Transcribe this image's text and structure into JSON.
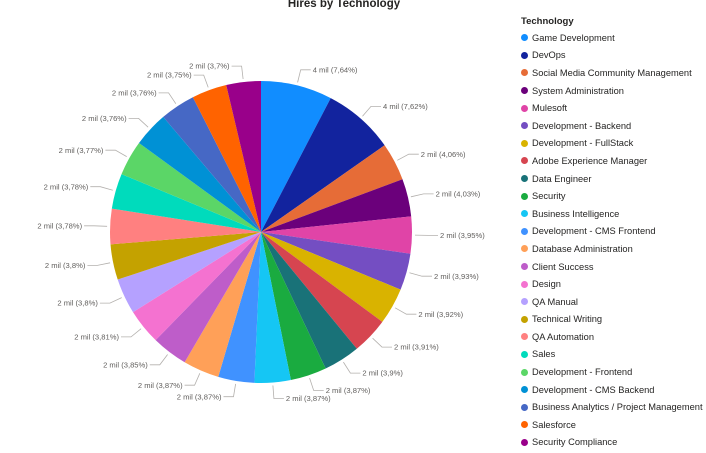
{
  "chart_data": {
    "type": "pie",
    "title": "Hires by Technology",
    "legend_title": "Technology",
    "legend_position": "right",
    "slices": [
      {
        "name": "Game Development",
        "label": "4 mil (7,64%)",
        "percent": 7.64,
        "color": "#118DFF"
      },
      {
        "name": "DevOps",
        "label": "4 mil (7,62%)",
        "percent": 7.62,
        "color": "#12239E"
      },
      {
        "name": "Social Media Community Management",
        "label": "2 mil (4,06%)",
        "percent": 4.06,
        "color": "#E66C37"
      },
      {
        "name": "System Administration",
        "label": "2 mil (4,03%)",
        "percent": 4.03,
        "color": "#6B007B"
      },
      {
        "name": "Mulesoft",
        "label": "2 mil (3,95%)",
        "percent": 3.95,
        "color": "#E044A7"
      },
      {
        "name": "Development - Backend",
        "label": "2 mil (3,93%)",
        "percent": 3.93,
        "color": "#744EC2"
      },
      {
        "name": "Development - FullStack",
        "label": "2 mil (3,92%)",
        "percent": 3.92,
        "color": "#D9B300"
      },
      {
        "name": "Adobe Experience Manager",
        "label": "2 mil (3,91%)",
        "percent": 3.91,
        "color": "#D64550"
      },
      {
        "name": "Data Engineer",
        "label": "2 mil (3,9%)",
        "percent": 3.9,
        "color": "#197278"
      },
      {
        "name": "Security",
        "label": "2 mil (3,87%)",
        "percent": 3.87,
        "color": "#1AAB40"
      },
      {
        "name": "Business Intelligence",
        "label": "2 mil (3,87%)",
        "percent": 3.87,
        "color": "#15C6F4"
      },
      {
        "name": "Development - CMS Frontend",
        "label": "2 mil (3,87%)",
        "percent": 3.87,
        "color": "#4092FF"
      },
      {
        "name": "Database Administration",
        "label": "2 mil (3,87%)",
        "percent": 3.87,
        "color": "#FFA058"
      },
      {
        "name": "Client Success",
        "label": "2 mil (3,85%)",
        "percent": 3.85,
        "color": "#BE5DC9"
      },
      {
        "name": "Design",
        "label": "2 mil (3,81%)",
        "percent": 3.81,
        "color": "#F472D0"
      },
      {
        "name": "QA Manual",
        "label": "2 mil (3,8%)",
        "percent": 3.8,
        "color": "#B5A1FF"
      },
      {
        "name": "Technical Writing",
        "label": "2 mil (3,8%)",
        "percent": 3.8,
        "color": "#C4A200"
      },
      {
        "name": "QA Automation",
        "label": "2 mil (3,78%)",
        "percent": 3.78,
        "color": "#FF8080"
      },
      {
        "name": "Sales",
        "label": "2 mil (3,78%)",
        "percent": 3.78,
        "color": "#00DBBC"
      },
      {
        "name": "Development - Frontend",
        "label": "2 mil (3,77%)",
        "percent": 3.77,
        "color": "#5BD667"
      },
      {
        "name": "Development - CMS Backend",
        "label": "2 mil (3,76%)",
        "percent": 3.76,
        "color": "#0091D5"
      },
      {
        "name": "Business Analytics / Project Management",
        "label": "2 mil (3,76%)",
        "percent": 3.76,
        "color": "#4668C5"
      },
      {
        "name": "Salesforce",
        "label": "2 mil (3,75%)",
        "percent": 3.75,
        "color": "#FF6300"
      },
      {
        "name": "Security Compliance",
        "label": "2 mil (3,7%)",
        "percent": 3.7,
        "color": "#99008A"
      }
    ]
  }
}
